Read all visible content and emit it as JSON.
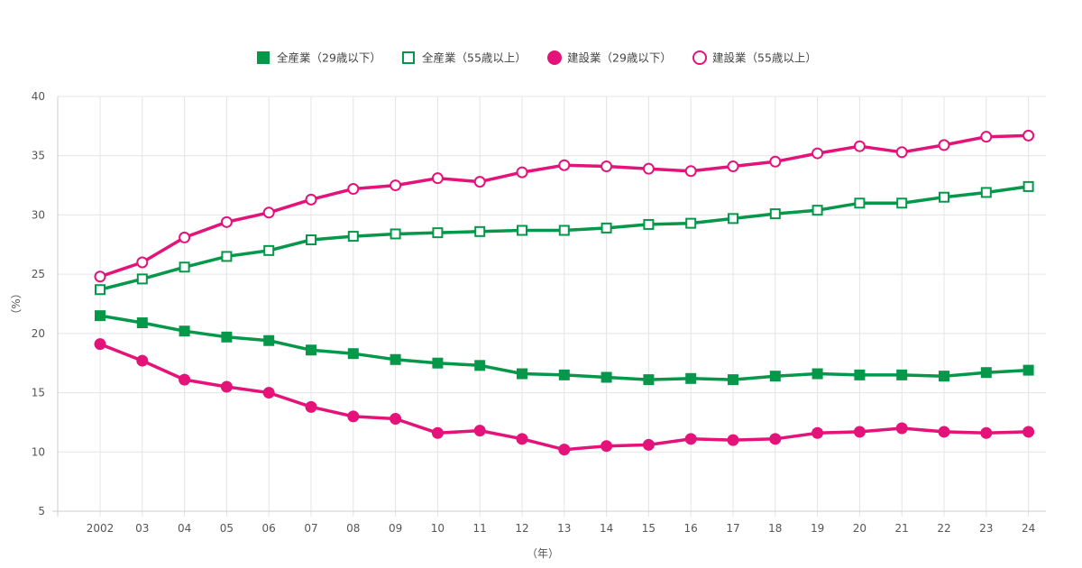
{
  "chart_data": {
    "type": "line",
    "title": "",
    "xlabel": "（年）",
    "ylabel": "（%）",
    "ylim": [
      5,
      40
    ],
    "yticks": [
      5,
      10,
      15,
      20,
      25,
      30,
      35,
      40
    ],
    "grid": true,
    "legend_position": "top-center",
    "categories": [
      "2002",
      "03",
      "04",
      "05",
      "06",
      "07",
      "08",
      "09",
      "10",
      "11",
      "12",
      "13",
      "14",
      "15",
      "16",
      "17",
      "18",
      "19",
      "20",
      "21",
      "22",
      "23",
      "24"
    ],
    "series": [
      {
        "name": "全産業（29歳以下）",
        "color": "#05974a",
        "marker": "square",
        "filled": true,
        "values": [
          21.5,
          20.9,
          20.2,
          19.7,
          19.4,
          18.6,
          18.3,
          17.8,
          17.5,
          17.3,
          16.6,
          16.5,
          16.3,
          16.1,
          16.2,
          16.1,
          16.4,
          16.6,
          16.5,
          16.5,
          16.4,
          16.7,
          16.9
        ]
      },
      {
        "name": "全産業（55歳以上）",
        "color": "#05974a",
        "marker": "square",
        "filled": false,
        "values": [
          23.7,
          24.6,
          25.6,
          26.5,
          27.0,
          27.9,
          28.2,
          28.4,
          28.5,
          28.6,
          28.7,
          28.7,
          28.9,
          29.2,
          29.3,
          29.7,
          30.1,
          30.4,
          31.0,
          31.0,
          31.5,
          31.9,
          32.4
        ]
      },
      {
        "name": "建設業（29歳以下）",
        "color": "#e3137a",
        "marker": "circle",
        "filled": true,
        "values": [
          19.1,
          17.7,
          16.1,
          15.5,
          15.0,
          13.8,
          13.0,
          12.8,
          11.6,
          11.8,
          11.1,
          10.2,
          10.5,
          10.6,
          11.1,
          11.0,
          11.1,
          11.6,
          11.7,
          12.0,
          11.7,
          11.6,
          11.7
        ]
      },
      {
        "name": "建設業（55歳以上）",
        "color": "#e3137a",
        "marker": "circle",
        "filled": false,
        "values": [
          24.8,
          26.0,
          28.1,
          29.4,
          30.2,
          31.3,
          32.2,
          32.5,
          33.1,
          32.8,
          33.6,
          34.2,
          34.1,
          33.9,
          33.7,
          34.1,
          34.5,
          35.2,
          35.8,
          35.3,
          35.9,
          36.6,
          36.7
        ]
      }
    ]
  }
}
